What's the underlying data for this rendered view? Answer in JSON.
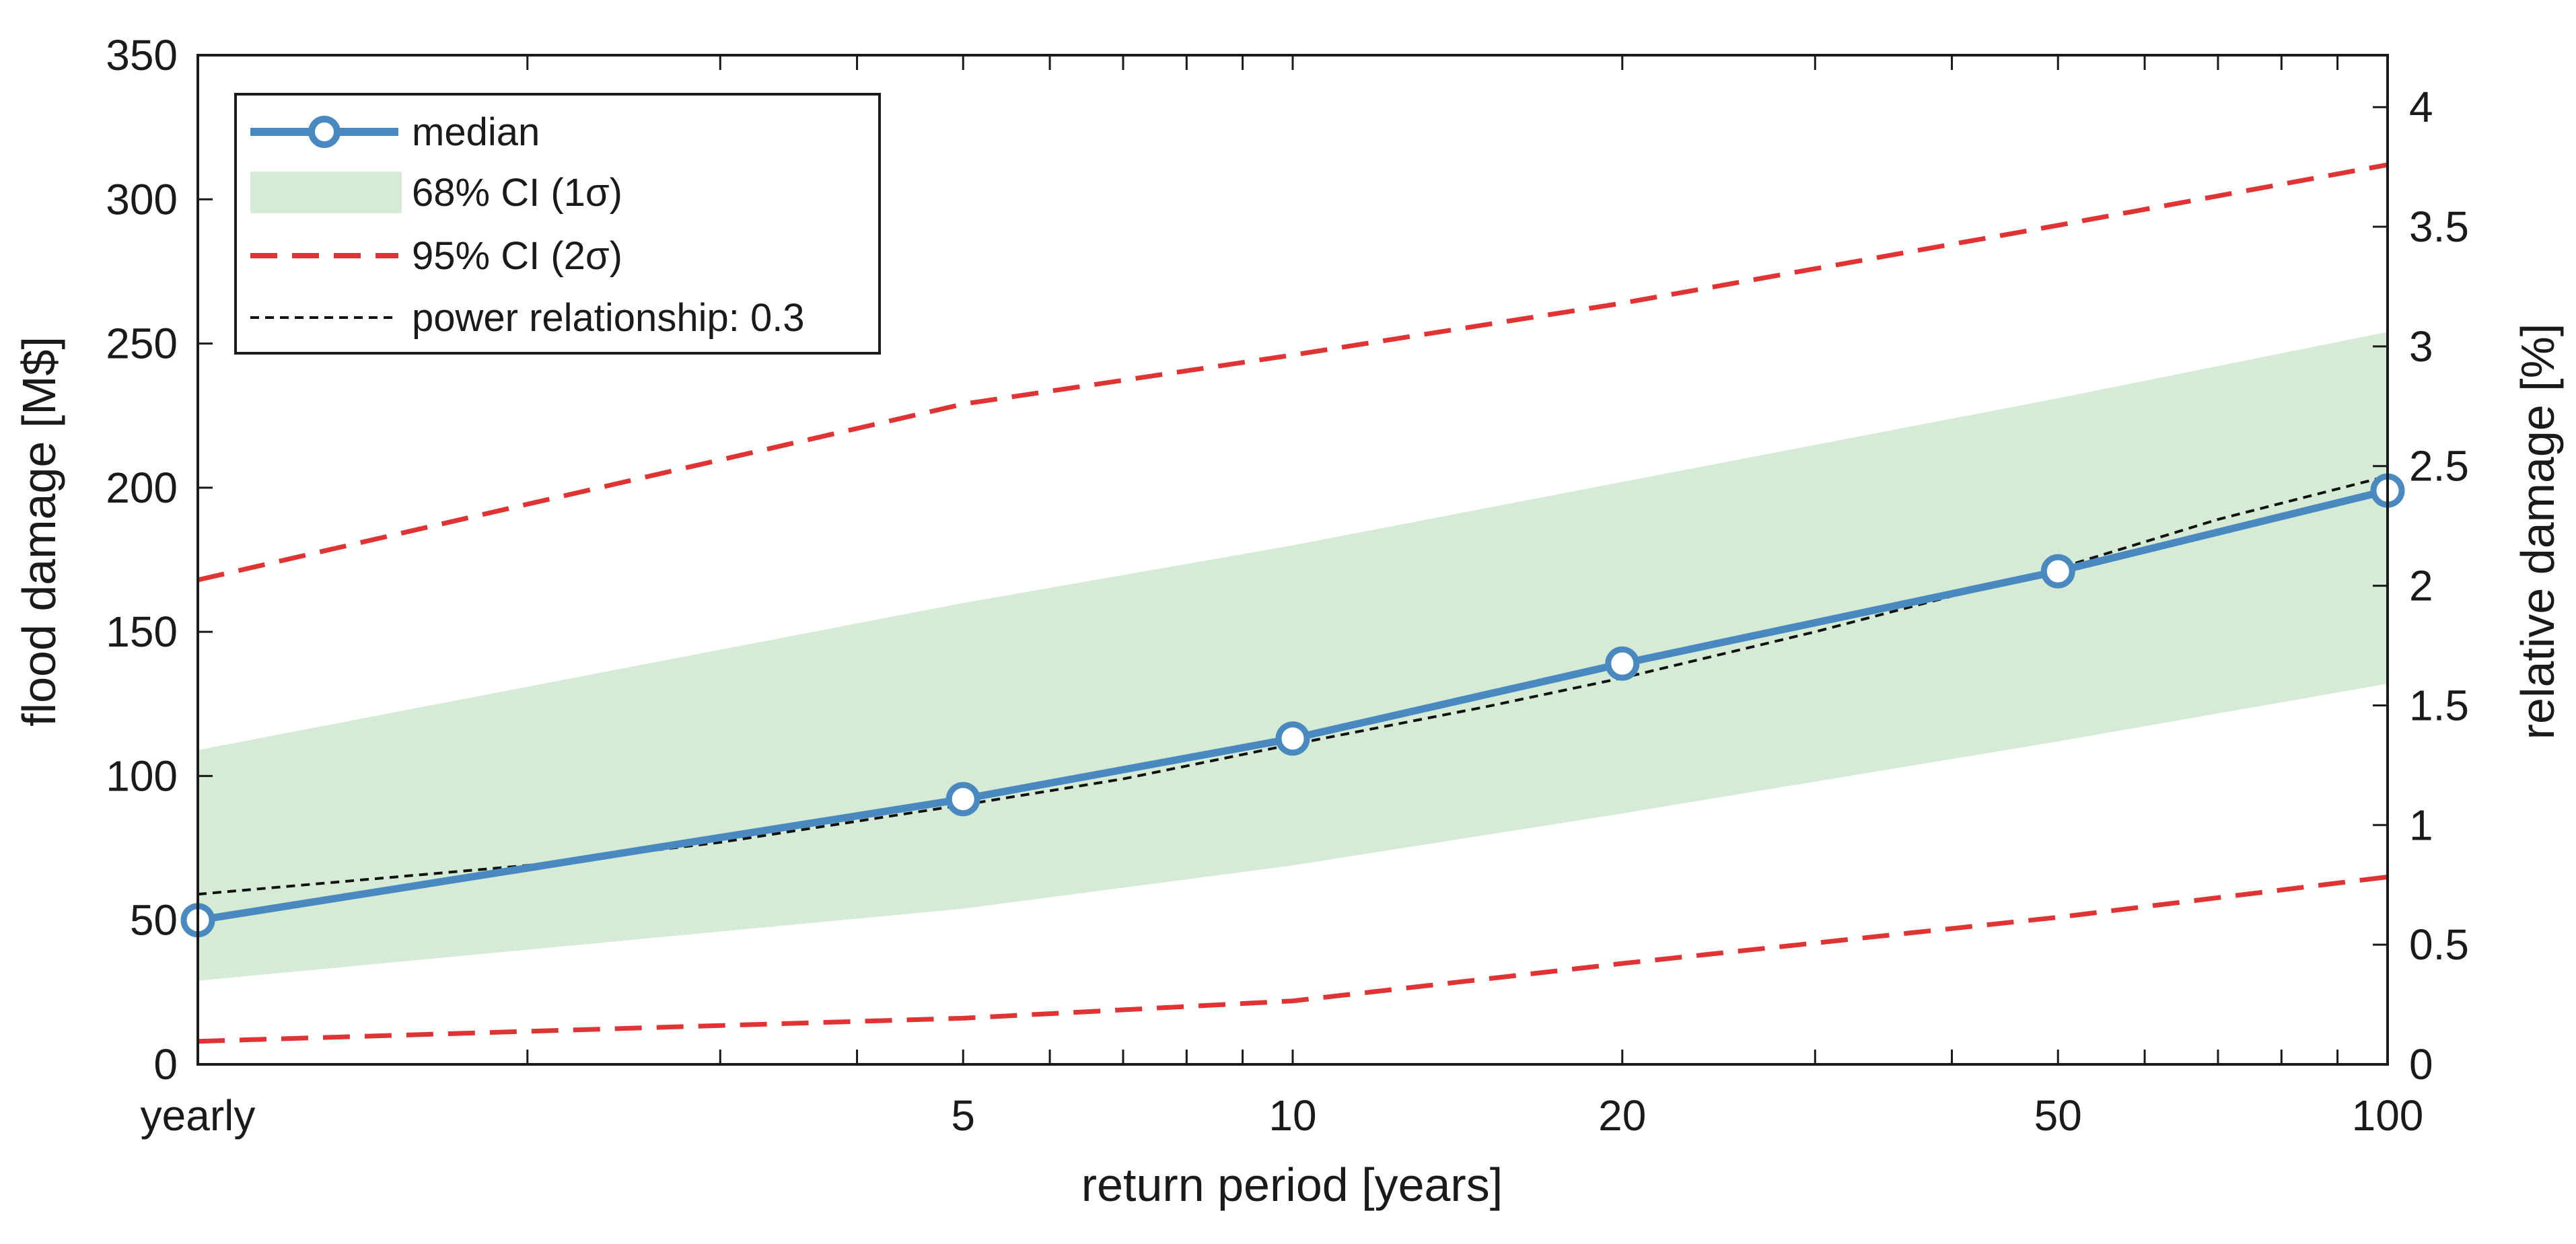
{
  "chart_data": {
    "type": "line",
    "xscale": "log",
    "xlabel": "return period [years]",
    "ylabel": "flood damage [M$]",
    "y2label": "relative damage [%]",
    "xlim": [
      1,
      100
    ],
    "ylim": [
      0,
      350
    ],
    "y2lim": [
      0,
      4.217
    ],
    "xticks": [
      {
        "value": 1,
        "label": "yearly"
      },
      {
        "value": 5,
        "label": "5"
      },
      {
        "value": 10,
        "label": "10"
      },
      {
        "value": 20,
        "label": "20"
      },
      {
        "value": 50,
        "label": "50"
      },
      {
        "value": 100,
        "label": "100"
      }
    ],
    "yticks": [
      0,
      50,
      100,
      150,
      200,
      250,
      300,
      350
    ],
    "y2ticks": [
      "0",
      "0.5",
      "1",
      "1.5",
      "2",
      "2.5",
      "3",
      "3.5",
      "4"
    ],
    "legend_position": "top-left",
    "series": [
      {
        "name": "median",
        "kind": "line-markers",
        "color": "#4a88c0",
        "x": [
          1,
          5,
          10,
          20,
          50,
          100
        ],
        "values": [
          50,
          92,
          113,
          139,
          171,
          199
        ]
      },
      {
        "name": "68% CI (1σ)",
        "kind": "band",
        "color": "#d5ebd5",
        "x": [
          1,
          5,
          10,
          20,
          50,
          100
        ],
        "lower": [
          29,
          54,
          69,
          87,
          112,
          132
        ],
        "upper": [
          109,
          160,
          180,
          202,
          231,
          254
        ]
      },
      {
        "name": "95% CI (2σ)",
        "kind": "dashed-pair",
        "color": "#e03434",
        "x": [
          1,
          5,
          10,
          20,
          50,
          100
        ],
        "lower": [
          8,
          16,
          22,
          35,
          51,
          65
        ],
        "upper": [
          168,
          229,
          246,
          264,
          291,
          312
        ]
      },
      {
        "name": "power relationship: 0.3",
        "kind": "dotted",
        "color": "#111111",
        "x": [
          1,
          2,
          3,
          5,
          7,
          10,
          15,
          20,
          30,
          50,
          70,
          100
        ],
        "values": [
          59,
          69,
          77,
          90,
          99,
          111,
          124,
          134,
          150,
          172,
          189,
          204
        ]
      }
    ]
  }
}
